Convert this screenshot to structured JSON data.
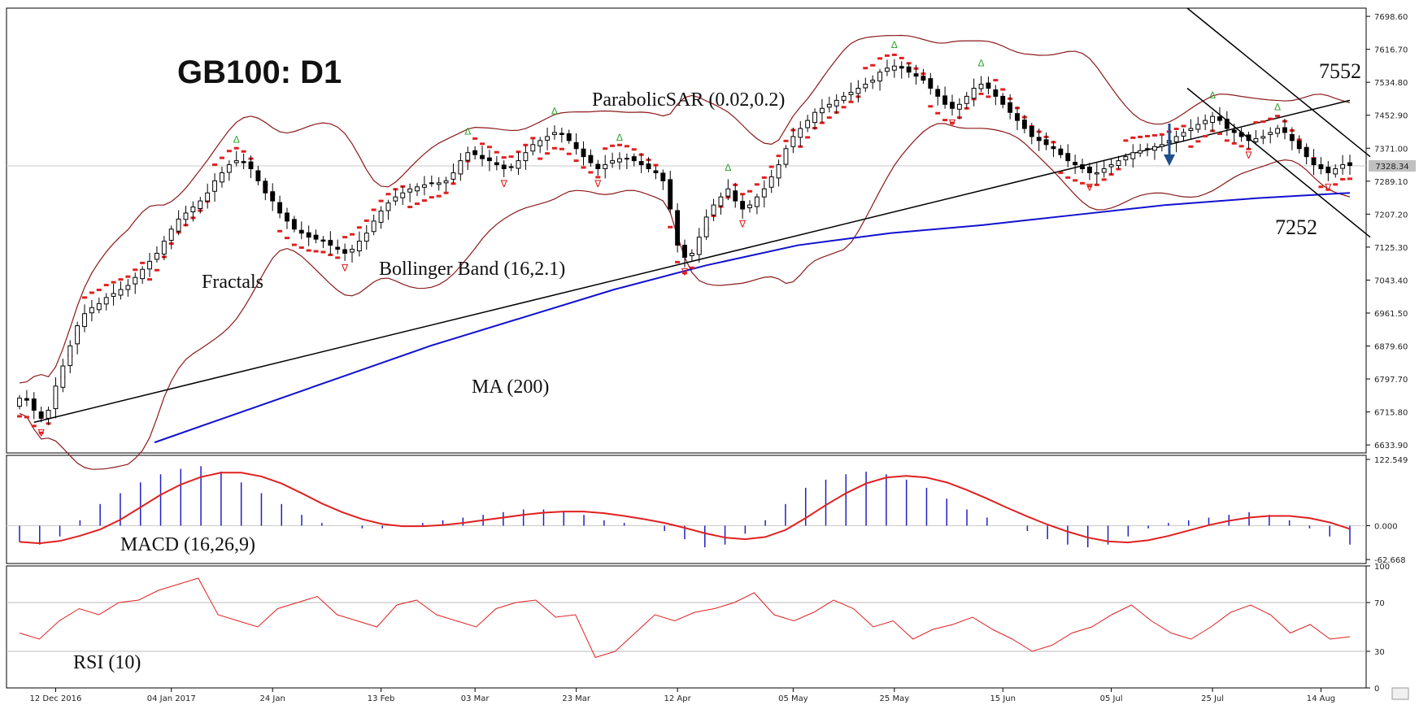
{
  "chart_data": {
    "type": "candlestick",
    "title": "GB100: D1",
    "timeframe": "D1",
    "indicator_labels": {
      "fractals": "Fractals",
      "bollinger": "Bollinger Band (16,2.1)",
      "parabolic_sar": "ParabolicSAR (0.02,0.2)",
      "ma": "MA (200)",
      "macd": "MACD (16,26,9)",
      "rsi": "RSI (10)"
    },
    "level_labels": {
      "resistance": "7552",
      "support": "7252"
    },
    "current_price": "7328.34",
    "price_axis": {
      "ticks": [
        "7698.60",
        "7616.70",
        "7534.80",
        "7452.90",
        "7371.00",
        "7289.10",
        "7207.20",
        "7125.30",
        "7043.40",
        "6961.50",
        "6879.60",
        "6797.70",
        "6715.80",
        "6633.90"
      ],
      "range": [
        6614.0,
        7719.0
      ]
    },
    "macd_axis": {
      "ticks": [
        "122.549",
        "0.000",
        "-62.668"
      ],
      "range": [
        -70,
        130
      ]
    },
    "rsi_axis": {
      "ticks": [
        "100",
        "70",
        "30",
        "0"
      ],
      "range": [
        0,
        100
      ],
      "levels": [
        30,
        70
      ]
    },
    "x_axis": {
      "labels": [
        "12 Dec 2016",
        "04 Jan 2017",
        "24 Jan",
        "13 Feb",
        "03 Mar",
        "23 Mar",
        "12 Apr",
        "05 May",
        "25 May",
        "15 Jun",
        "05 Jul",
        "25 Jul",
        "14 Aug"
      ],
      "label_bar_index": [
        5,
        21,
        35,
        50,
        63,
        77,
        91,
        107,
        121,
        136,
        151,
        165,
        180
      ],
      "bar_count": 185
    },
    "series": [
      {
        "name": "Close",
        "values": [
          6750,
          6745,
          6720,
          6700,
          6720,
          6780,
          6830,
          6880,
          6930,
          6960,
          6975,
          6985,
          7000,
          7010,
          7020,
          7030,
          7050,
          7070,
          7090,
          7110,
          7140,
          7170,
          7195,
          7210,
          7225,
          7240,
          7260,
          7290,
          7310,
          7330,
          7340,
          7335,
          7320,
          7290,
          7260,
          7240,
          7210,
          7190,
          7170,
          7160,
          7150,
          7145,
          7140,
          7130,
          7120,
          7110,
          7120,
          7140,
          7160,
          7190,
          7215,
          7235,
          7250,
          7260,
          7270,
          7275,
          7280,
          7285,
          7285,
          7290,
          7310,
          7340,
          7360,
          7355,
          7345,
          7340,
          7330,
          7320,
          7325,
          7340,
          7360,
          7380,
          7390,
          7400,
          7410,
          7405,
          7390,
          7370,
          7350,
          7335,
          7320,
          7330,
          7340,
          7345,
          7345,
          7340,
          7330,
          7320,
          7310,
          7290,
          7220,
          7130,
          7100,
          7110,
          7150,
          7200,
          7230,
          7250,
          7270,
          7240,
          7220,
          7230,
          7250,
          7270,
          7300,
          7330,
          7370,
          7400,
          7420,
          7440,
          7460,
          7470,
          7480,
          7490,
          7500,
          7510,
          7520,
          7530,
          7540,
          7560,
          7570,
          7575,
          7570,
          7560,
          7550,
          7540,
          7520,
          7500,
          7480,
          7470,
          7480,
          7500,
          7520,
          7530,
          7520,
          7500,
          7480,
          7460,
          7440,
          7420,
          7400,
          7390,
          7380,
          7370,
          7355,
          7340,
          7330,
          7320,
          7310,
          7310,
          7320,
          7330,
          7340,
          7350,
          7360,
          7365,
          7370,
          7375,
          7380,
          7390,
          7400,
          7410,
          7420,
          7430,
          7440,
          7450,
          7440,
          7420,
          7410,
          7400,
          7390,
          7395,
          7400,
          7410,
          7420,
          7410,
          7390,
          7370,
          7350,
          7330,
          7320,
          7310,
          7320,
          7330,
          7328
        ]
      },
      {
        "name": "MA (200)",
        "values": [
          6640,
          6720,
          6800,
          6880,
          6950,
          7020,
          7080,
          7130,
          7160,
          7180,
          7205,
          7230,
          7247,
          7260
        ]
      },
      {
        "name": "MACD",
        "values": [
          -30,
          -35,
          -20,
          10,
          40,
          60,
          80,
          95,
          105,
          110,
          100,
          80,
          60,
          40,
          20,
          5,
          0,
          -5,
          -5,
          0,
          5,
          10,
          15,
          20,
          25,
          30,
          30,
          25,
          20,
          10,
          5,
          0,
          -10,
          -25,
          -40,
          -35,
          -15,
          10,
          40,
          70,
          85,
          95,
          100,
          95,
          85,
          70,
          50,
          30,
          15,
          0,
          -10,
          -25,
          -35,
          -40,
          -35,
          -20,
          -5,
          5,
          10,
          15,
          20,
          25,
          20,
          10,
          -5,
          -20,
          -35
        ]
      },
      {
        "name": "RSI (10)",
        "values": [
          45,
          40,
          55,
          65,
          60,
          70,
          72,
          80,
          85,
          90,
          60,
          55,
          50,
          65,
          70,
          75,
          60,
          55,
          50,
          68,
          72,
          60,
          55,
          50,
          65,
          70,
          72,
          58,
          60,
          25,
          30,
          45,
          60,
          55,
          62,
          65,
          70,
          78,
          60,
          55,
          62,
          72,
          65,
          50,
          55,
          40,
          48,
          52,
          58,
          48,
          40,
          30,
          35,
          45,
          50,
          60,
          68,
          55,
          45,
          40,
          50,
          62,
          68,
          60,
          45,
          52,
          40,
          42
        ]
      }
    ]
  }
}
